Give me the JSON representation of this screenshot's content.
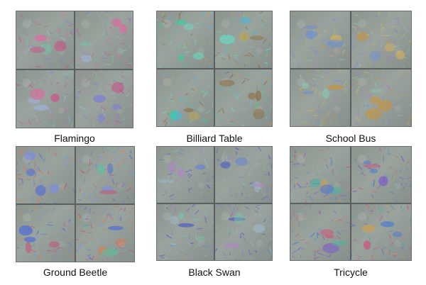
{
  "panels": [
    {
      "label": "Flamingo",
      "subject": "flamingo"
    },
    {
      "label": "Billiard Table",
      "subject": "billiard-table"
    },
    {
      "label": "School Bus",
      "subject": "school-bus"
    },
    {
      "label": "Ground Beetle",
      "subject": "ground-beetle"
    },
    {
      "label": "Black Swan",
      "subject": "black-swan"
    },
    {
      "label": "Tricycle",
      "subject": "tricycle"
    }
  ]
}
